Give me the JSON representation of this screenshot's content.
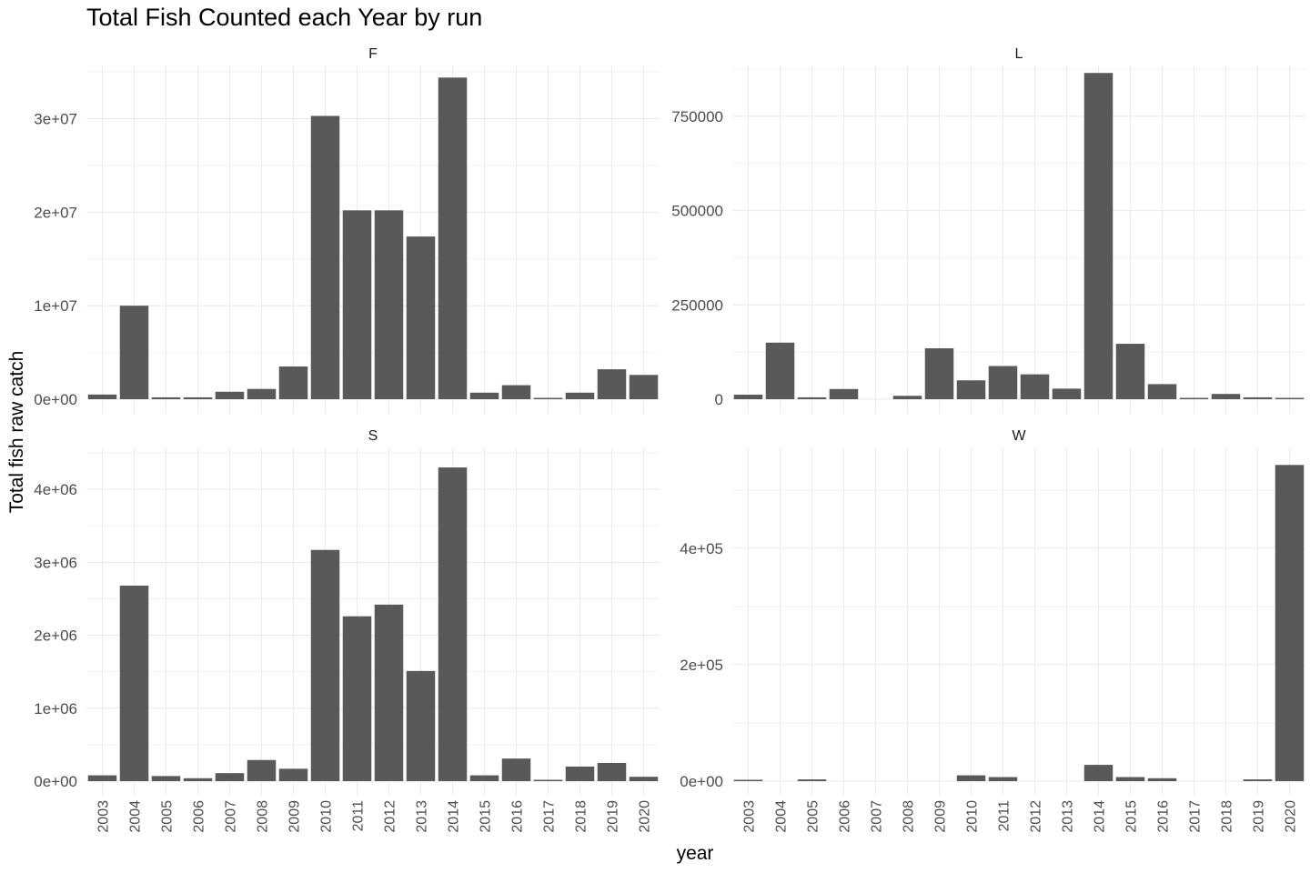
{
  "chart_data": {
    "type": "bar",
    "title": "Total Fish Counted each Year by run",
    "xlabel": "year",
    "ylabel": "Total fish raw catch",
    "categories": [
      "2003",
      "2004",
      "2005",
      "2006",
      "2007",
      "2008",
      "2009",
      "2010",
      "2011",
      "2012",
      "2013",
      "2014",
      "2015",
      "2016",
      "2017",
      "2018",
      "2019",
      "2020"
    ],
    "facets": [
      {
        "name": "F",
        "ylim": [
          0,
          35500000
        ],
        "yticks": [
          0,
          10000000,
          20000000,
          30000000
        ],
        "ytick_labels": [
          "0e+00",
          "1e+07",
          "2e+07",
          "3e+07"
        ],
        "values": [
          500000,
          10000000,
          200000,
          200000,
          800000,
          1100000,
          3500000,
          30300000,
          20200000,
          20200000,
          17400000,
          34400000,
          700000,
          1500000,
          100000,
          700000,
          3200000,
          2600000
        ]
      },
      {
        "name": "L",
        "ylim": [
          0,
          880000
        ],
        "yticks": [
          0,
          250000,
          500000,
          750000
        ],
        "ytick_labels": [
          "0",
          "250000",
          "500000",
          "750000"
        ],
        "values": [
          12000,
          150000,
          5000,
          27000,
          0,
          9000,
          135000,
          50000,
          88000,
          66000,
          28000,
          865000,
          147000,
          40000,
          3000,
          14000,
          5000,
          2000
        ]
      },
      {
        "name": "S",
        "ylim": [
          0,
          4550000
        ],
        "yticks": [
          0,
          1000000,
          2000000,
          3000000,
          4000000
        ],
        "ytick_labels": [
          "0e+00",
          "1e+06",
          "2e+06",
          "3e+06",
          "4e+06"
        ],
        "values": [
          80000,
          2680000,
          70000,
          40000,
          110000,
          290000,
          170000,
          3170000,
          2260000,
          2420000,
          1510000,
          4300000,
          80000,
          310000,
          10000,
          200000,
          250000,
          60000
        ]
      },
      {
        "name": "W",
        "ylim": [
          0,
          570000
        ],
        "yticks": [
          0,
          200000,
          400000
        ],
        "ytick_labels": [
          "0e+00",
          "2e+05",
          "4e+05"
        ],
        "values": [
          2000,
          0,
          3000,
          0,
          0,
          0,
          0,
          10000,
          7000,
          0,
          0,
          28000,
          7000,
          5000,
          0,
          0,
          3000,
          543000
        ]
      }
    ],
    "grid": true,
    "bar_color": "#595959"
  }
}
